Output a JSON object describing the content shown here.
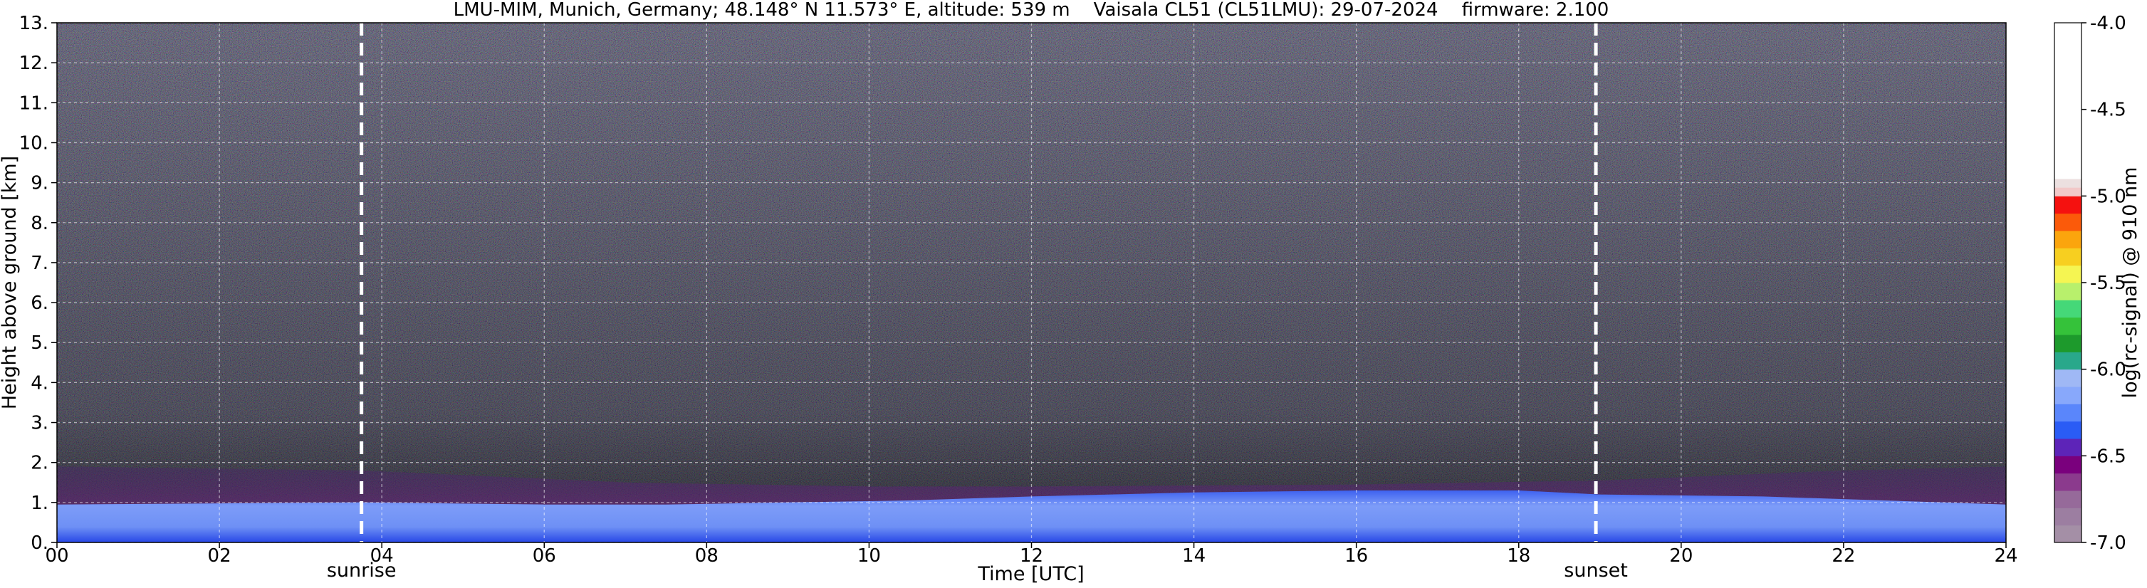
{
  "chart_data": {
    "type": "heatmap",
    "title": "LMU-MIM, Munich, Germany; 48.148° N 11.573° E, altitude: 539 m    Vaisala CL51 (CL51LMU): 29-07-2024    firmware: 2.100",
    "xlabel": "Time [UTC]",
    "ylabel": "Height above ground [km]",
    "xlim": [
      0,
      24
    ],
    "ylim": [
      0,
      13
    ],
    "x_ticks": [
      "00",
      "02",
      "04",
      "06",
      "08",
      "10",
      "12",
      "14",
      "16",
      "18",
      "20",
      "22",
      "24"
    ],
    "y_ticks": [
      "0.",
      "1.",
      "2.",
      "3.",
      "4.",
      "5.",
      "6.",
      "7.",
      "8.",
      "9.",
      "10.",
      "11.",
      "12.",
      "13."
    ],
    "grid": true,
    "markers": [
      {
        "label": "sunrise",
        "time_utc": 3.75
      },
      {
        "label": "sunset",
        "time_utc": 18.95
      }
    ],
    "colorbar": {
      "label": "log(rc-signal) @ 910 nm",
      "range": [
        -7.0,
        -4.0
      ],
      "ticks": [
        "-4.0",
        "-4.5",
        "-5.0",
        "-5.5",
        "-6.0",
        "-6.5",
        "-7.0"
      ],
      "colors": [
        {
          "from": -7.0,
          "to": -6.9,
          "color": "#a48fa6"
        },
        {
          "from": -6.9,
          "to": -6.8,
          "color": "#9c7ea1"
        },
        {
          "from": -6.8,
          "to": -6.7,
          "color": "#966a9a"
        },
        {
          "from": -6.7,
          "to": -6.6,
          "color": "#8b3a8d"
        },
        {
          "from": -6.6,
          "to": -6.5,
          "color": "#7a007d"
        },
        {
          "from": -6.5,
          "to": -6.4,
          "color": "#5d24b8"
        },
        {
          "from": -6.4,
          "to": -6.3,
          "color": "#2a5cf5"
        },
        {
          "from": -6.3,
          "to": -6.2,
          "color": "#5a86fb"
        },
        {
          "from": -6.2,
          "to": -6.1,
          "color": "#88a8fb"
        },
        {
          "from": -6.1,
          "to": -6.0,
          "color": "#9fb8f5"
        },
        {
          "from": -6.0,
          "to": -5.9,
          "color": "#29a88b"
        },
        {
          "from": -5.9,
          "to": -5.8,
          "color": "#1d9a2c"
        },
        {
          "from": -5.8,
          "to": -5.7,
          "color": "#35c23a"
        },
        {
          "from": -5.7,
          "to": -5.6,
          "color": "#45d878"
        },
        {
          "from": -5.6,
          "to": -5.5,
          "color": "#b8f06c"
        },
        {
          "from": -5.5,
          "to": -5.4,
          "color": "#f5f552"
        },
        {
          "from": -5.4,
          "to": -5.3,
          "color": "#f7cf20"
        },
        {
          "from": -5.3,
          "to": -5.2,
          "color": "#fba50d"
        },
        {
          "from": -5.2,
          "to": -5.1,
          "color": "#fb5a0a"
        },
        {
          "from": -5.1,
          "to": -5.0,
          "color": "#f5110f"
        },
        {
          "from": -5.0,
          "to": -4.95,
          "color": "#f2c8c8"
        },
        {
          "from": -4.95,
          "to": -4.9,
          "color": "#ece0e0"
        },
        {
          "from": -4.9,
          "to": -4.0,
          "color": "#ffffff"
        }
      ]
    },
    "aerosol_layer_top_km": [
      [
        0,
        0.95
      ],
      [
        3.75,
        1.0
      ],
      [
        6,
        0.95
      ],
      [
        7.5,
        0.95
      ],
      [
        9,
        1.0
      ],
      [
        10.5,
        1.05
      ],
      [
        12,
        1.15
      ],
      [
        14,
        1.25
      ],
      [
        16,
        1.3
      ],
      [
        18,
        1.3
      ],
      [
        19,
        1.2
      ],
      [
        21,
        1.15
      ],
      [
        22.5,
        1.05
      ],
      [
        24,
        0.95
      ]
    ],
    "residual_layer_top_km": [
      [
        0,
        1.9
      ],
      [
        3.75,
        1.8
      ],
      [
        7,
        1.5
      ],
      [
        10,
        1.4
      ],
      [
        12,
        1.4
      ],
      [
        16,
        1.45
      ],
      [
        19,
        1.55
      ],
      [
        22,
        1.8
      ],
      [
        24,
        1.9
      ]
    ]
  }
}
